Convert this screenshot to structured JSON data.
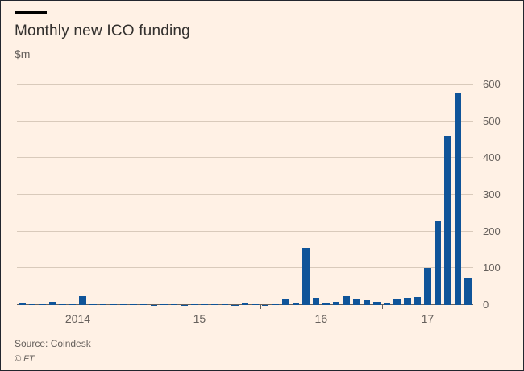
{
  "header": {
    "title": "Monthly new ICO funding",
    "unit_label": "$m"
  },
  "footer": {
    "source": "Source: Coindesk",
    "copyright": "© FT"
  },
  "colors": {
    "background": "#FFF1E5",
    "bar": "#0F5499",
    "axis_text": "#66605C",
    "gridline": "#d9cabb",
    "title_text": "#33302E"
  },
  "chart_data": {
    "type": "bar",
    "title": "Monthly new ICO funding",
    "ylabel": "$m",
    "ylim": [
      0,
      600
    ],
    "yticks": [
      0,
      100,
      200,
      300,
      400,
      500,
      600
    ],
    "grid": "horizontal",
    "legend": "none",
    "bar_color": "#0F5499",
    "x": [
      "Jan 2014",
      "Feb 2014",
      "Mar 2014",
      "Apr 2014",
      "May 2014",
      "Jun 2014",
      "Jul 2014",
      "Aug 2014",
      "Sep 2014",
      "Oct 2014",
      "Nov 2014",
      "Dec 2014",
      "Jan 2015",
      "Feb 2015",
      "Mar 2015",
      "Apr 2015",
      "May 2015",
      "Jun 2015",
      "Jul 2015",
      "Aug 2015",
      "Sep 2015",
      "Oct 2015",
      "Nov 2015",
      "Dec 2015",
      "Jan 2016",
      "Feb 2016",
      "Mar 2016",
      "Apr 2016",
      "May 2016",
      "Jun 2016",
      "Jul 2016",
      "Aug 2016",
      "Sep 2016",
      "Oct 2016",
      "Nov 2016",
      "Dec 2016",
      "Jan 2017",
      "Feb 2017",
      "Mar 2017",
      "Apr 2017",
      "May 2017",
      "Jun 2017",
      "Jul 2017",
      "Aug 2017",
      "Sep 2017"
    ],
    "values": [
      4,
      2,
      3,
      9,
      2,
      2,
      24,
      2,
      2,
      2,
      2,
      2,
      2,
      1,
      2,
      2,
      1,
      2,
      2,
      2,
      2,
      1,
      7,
      2,
      1,
      2,
      18,
      4,
      155,
      20,
      4,
      8,
      25,
      18,
      14,
      8,
      6,
      15,
      20,
      22,
      100,
      230,
      460,
      575,
      75
    ],
    "xticks": [
      {
        "label": "2014",
        "center": 5.5
      },
      {
        "label": "15",
        "center": 17.5
      },
      {
        "label": "16",
        "center": 29.5
      },
      {
        "label": "17",
        "center": 40
      }
    ],
    "year_boundaries": [
      12,
      24,
      36
    ]
  }
}
